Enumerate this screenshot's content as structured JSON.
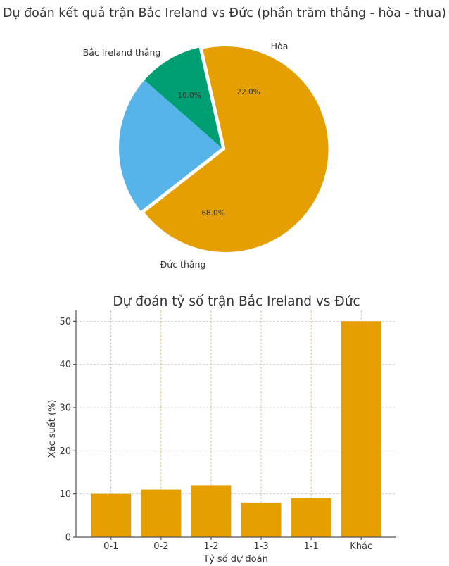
{
  "chart_data": [
    {
      "type": "pie",
      "title": "Dự đoán kết quả trận Bắc Ireland vs Đức (phần trăm thắng - hòa - thua)",
      "labels": [
        "Bắc Ireland thắng",
        "Hòa",
        "Đức thắng"
      ],
      "values": [
        10.0,
        22.0,
        68.0
      ],
      "value_labels": [
        "10.0%",
        "22.0%",
        "68.0%"
      ],
      "colors": [
        "#009E73",
        "#56B4E9",
        "#E69F00"
      ],
      "explode": [
        0,
        0,
        0.04
      ],
      "autopct": "%1.1f%%"
    },
    {
      "type": "bar",
      "title": "Dự đoán tỷ số trận Bắc Ireland vs Đức",
      "categories": [
        "0-1",
        "0-2",
        "1-2",
        "1-3",
        "1-1",
        "Khác"
      ],
      "values": [
        10,
        11,
        12,
        8,
        9,
        50
      ],
      "xlabel": "Tỷ số dự đoán",
      "ylabel": "Xác suất (%)",
      "ylim": [
        0,
        52.5
      ],
      "yticks": [
        0,
        10,
        20,
        30,
        40,
        50
      ],
      "grid": true,
      "color": "#E69F00"
    }
  ]
}
